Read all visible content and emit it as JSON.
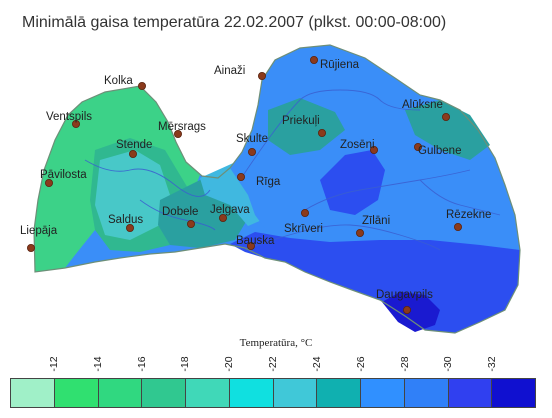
{
  "title": "Minimālā gaisa temperatūra 22.02.2007 (plkst. 00:00-08:00)",
  "legend": {
    "title": "Temperatūra, °C",
    "ticks": [
      "-12",
      "-14",
      "-16",
      "-18",
      "-20",
      "-22",
      "-24",
      "-26",
      "-28",
      "-30",
      "-32"
    ],
    "colors": [
      "#a0f0c8",
      "#30e070",
      "#30d880",
      "#30c890",
      "#40d8b8",
      "#10e0e0",
      "#40c8d8",
      "#10b0b0",
      "#3090ff",
      "#3080f8",
      "#3040f0",
      "#1010d0"
    ]
  },
  "zone_colors": {
    "outline": "#7ec8a0",
    "green": "#3cd288",
    "mid_green": "#30b890",
    "teal": "#2aa0a0",
    "light_teal": "#48c8c8",
    "cyan": "#40b8e0",
    "blue": "#3a8ef8",
    "dark_blue": "#2c4ef0",
    "deep_blue": "#1a1ad0"
  },
  "cities": [
    {
      "name": "Kolka"
    },
    {
      "name": "Ainaži"
    },
    {
      "name": "Rūjiena"
    },
    {
      "name": "Ventspils"
    },
    {
      "name": "Mērsrags"
    },
    {
      "name": "Alūksne"
    },
    {
      "name": "Stende"
    },
    {
      "name": "Priekuļi"
    },
    {
      "name": "Skulte"
    },
    {
      "name": "Zosēni"
    },
    {
      "name": "Gulbene"
    },
    {
      "name": "Pāvilosta"
    },
    {
      "name": "Rīga"
    },
    {
      "name": "Dobele"
    },
    {
      "name": "Jelgava"
    },
    {
      "name": "Saldus"
    },
    {
      "name": "Rēzekne"
    },
    {
      "name": "Zīlāni"
    },
    {
      "name": "Skrīveri"
    },
    {
      "name": "Liepāja"
    },
    {
      "name": "Bauska"
    },
    {
      "name": "Daugavpils"
    }
  ]
}
